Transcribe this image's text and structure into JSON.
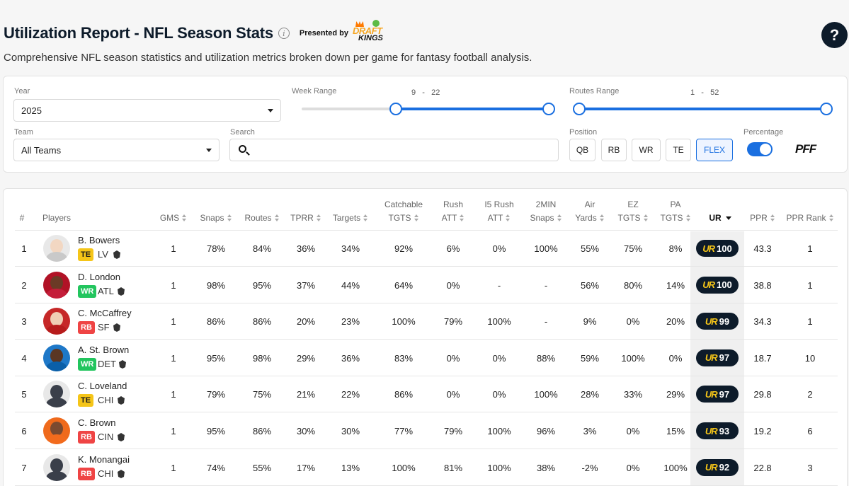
{
  "header": {
    "title": "Utilization Report - NFL Season Stats",
    "presented_by": "Presented by",
    "sponsor_top": "DRAFT",
    "sponsor_bottom": "KINGS",
    "help": "?",
    "subtitle": "Comprehensive NFL season statistics and utilization metrics broken down per game for fantasy football analysis."
  },
  "filters": {
    "year_label": "Year",
    "year_value": "2025",
    "week_label": "Week Range",
    "week_min": "9",
    "week_sep": "-",
    "week_max": "22",
    "routes_label": "Routes Range",
    "routes_min": "1",
    "routes_sep": "-",
    "routes_max": "52",
    "team_label": "Team",
    "team_value": "All Teams",
    "search_label": "Search",
    "search_placeholder": "",
    "position_label": "Position",
    "positions": [
      "QB",
      "RB",
      "WR",
      "TE",
      "FLEX"
    ],
    "active_position": "FLEX",
    "percentage_label": "Percentage",
    "percentage_on": true,
    "brand": "PFF"
  },
  "table": {
    "columns": {
      "rank": "#",
      "players": "Players",
      "gms": "GMS",
      "snaps": "Snaps",
      "routes": "Routes",
      "tprr": "TPRR",
      "targets": "Targets",
      "catchable_1": "Catchable",
      "catchable_2": "TGTS",
      "rush_1": "Rush",
      "rush_2": "ATT",
      "i5rush_1": "I5 Rush",
      "i5rush_2": "ATT",
      "twomin_1": "2MIN",
      "twomin_2": "Snaps",
      "air_1": "Air",
      "air_2": "Yards",
      "ez_1": "EZ",
      "ez_2": "TGTS",
      "pa_1": "PA",
      "pa_2": "TGTS",
      "ur": "UR",
      "ppr": "PPR",
      "ppr_rank": "PPR Rank"
    },
    "ur_mark": "UR",
    "rows": [
      {
        "rank": "1",
        "name": "B. Bowers",
        "pos": "TE",
        "team": "LV",
        "gms": "1",
        "snaps": "78%",
        "routes": "84%",
        "tprr": "36%",
        "targets": "34%",
        "catchable": "92%",
        "rush": "6%",
        "i5rush": "0%",
        "twomin": "100%",
        "air": "55%",
        "ez": "75%",
        "pa": "8%",
        "ur": "100",
        "ppr": "43.3",
        "ppr_rank": "1"
      },
      {
        "rank": "2",
        "name": "D. London",
        "pos": "WR",
        "team": "ATL",
        "gms": "1",
        "snaps": "98%",
        "routes": "95%",
        "tprr": "37%",
        "targets": "44%",
        "catchable": "64%",
        "rush": "0%",
        "i5rush": "-",
        "twomin": "-",
        "air": "56%",
        "ez": "80%",
        "pa": "14%",
        "ur": "100",
        "ppr": "38.8",
        "ppr_rank": "1"
      },
      {
        "rank": "3",
        "name": "C. McCaffrey",
        "pos": "RB",
        "team": "SF",
        "gms": "1",
        "snaps": "86%",
        "routes": "86%",
        "tprr": "20%",
        "targets": "23%",
        "catchable": "100%",
        "rush": "79%",
        "i5rush": "100%",
        "twomin": "-",
        "air": "9%",
        "ez": "0%",
        "pa": "20%",
        "ur": "99",
        "ppr": "34.3",
        "ppr_rank": "1"
      },
      {
        "rank": "4",
        "name": "A. St. Brown",
        "pos": "WR",
        "team": "DET",
        "gms": "1",
        "snaps": "95%",
        "routes": "98%",
        "tprr": "29%",
        "targets": "36%",
        "catchable": "83%",
        "rush": "0%",
        "i5rush": "0%",
        "twomin": "88%",
        "air": "59%",
        "ez": "100%",
        "pa": "0%",
        "ur": "97",
        "ppr": "18.7",
        "ppr_rank": "10"
      },
      {
        "rank": "5",
        "name": "C. Loveland",
        "pos": "TE",
        "team": "CHI",
        "gms": "1",
        "snaps": "79%",
        "routes": "75%",
        "tprr": "21%",
        "targets": "22%",
        "catchable": "86%",
        "rush": "0%",
        "i5rush": "0%",
        "twomin": "100%",
        "air": "28%",
        "ez": "33%",
        "pa": "29%",
        "ur": "97",
        "ppr": "29.8",
        "ppr_rank": "2"
      },
      {
        "rank": "6",
        "name": "C. Brown",
        "pos": "RB",
        "team": "CIN",
        "gms": "1",
        "snaps": "95%",
        "routes": "86%",
        "tprr": "30%",
        "targets": "30%",
        "catchable": "77%",
        "rush": "79%",
        "i5rush": "100%",
        "twomin": "96%",
        "air": "3%",
        "ez": "0%",
        "pa": "15%",
        "ur": "93",
        "ppr": "19.2",
        "ppr_rank": "6"
      },
      {
        "rank": "7",
        "name": "K. Monangai",
        "pos": "RB",
        "team": "CHI",
        "gms": "1",
        "snaps": "74%",
        "routes": "55%",
        "tprr": "17%",
        "targets": "13%",
        "catchable": "100%",
        "rush": "81%",
        "i5rush": "100%",
        "twomin": "38%",
        "air": "-2%",
        "ez": "0%",
        "pa": "100%",
        "ur": "92",
        "ppr": "22.8",
        "ppr_rank": "3"
      }
    ]
  },
  "colors": {
    "accent": "#1a6fe0",
    "navy": "#0d1b2a",
    "ur_gold": "#f5c518",
    "te": "#f5c518",
    "wr": "#22c55e",
    "rb": "#ef4444"
  }
}
